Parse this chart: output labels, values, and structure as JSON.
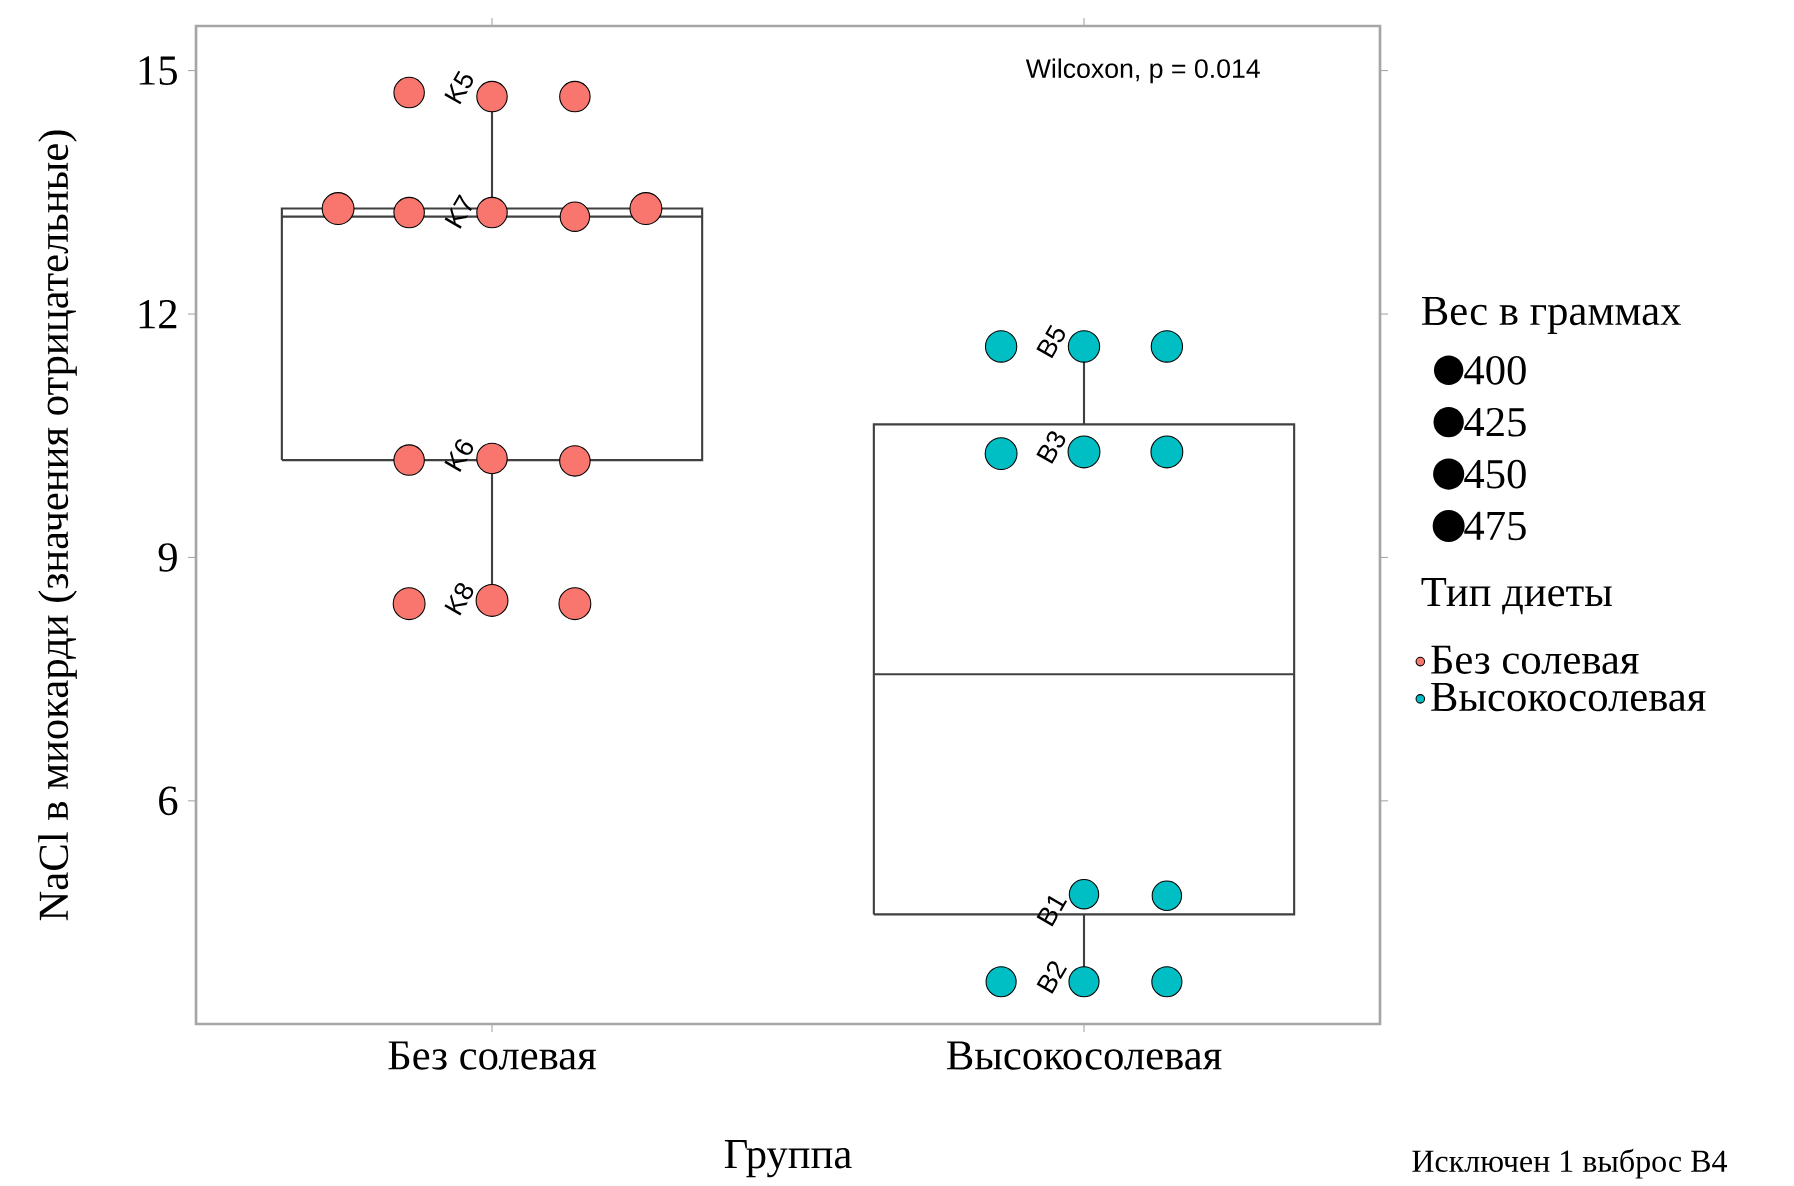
{
  "chart_data": {
    "type": "box",
    "xlabel": "Группа",
    "ylabel": "NaCl в миокарди (значения отрицательные)",
    "legend_title": "Тип диеты",
    "categories": [
      "Без солевая",
      "Высокосолевая"
    ],
    "boxes": [
      {
        "low": 8.43,
        "q1": 10.2,
        "median": 13.2,
        "q3": 13.3,
        "high": 14.73
      },
      {
        "low": 3.77,
        "q1": 4.6,
        "median": 7.56,
        "q3": 10.64,
        "high": 11.6
      }
    ],
    "series": [
      {
        "name": "Без солевая",
        "type": "bubble",
        "color": "#f8766d",
        "x": [
          "Без солевая",
          "Без солевая",
          "Без солевая",
          "Без солевая",
          "Без солевая",
          "Без солевая",
          "Без солевая",
          "Без солевая",
          "Без солевая",
          "Без солевая",
          "Без солевая",
          "Без солевая",
          "Без солевая",
          "Без солевая"
        ],
        "values": [
          14.68,
          14.68,
          14.73,
          13.25,
          13.2,
          13.25,
          13.3,
          13.3,
          10.22,
          10.19,
          10.2,
          8.47,
          8.43,
          8.43
        ],
        "sizes": [
          430,
          430,
          430,
          430,
          400,
          430,
          470,
          470,
          430,
          430,
          430,
          470,
          470,
          470
        ]
      },
      {
        "name": "Высокосолевая",
        "type": "bubble",
        "color": "#00bfc4",
        "x": [
          "Высокосолевая",
          "Высокосолевая",
          "Высокосолевая",
          "Высокосолевая",
          "Высокосолевая",
          "Высокосолевая",
          "Высокосолевая",
          "Высокосолевая",
          "Высокосолевая",
          "Высокосолевая",
          "Высокосолевая"
        ],
        "values": [
          11.6,
          11.6,
          11.6,
          10.3,
          10.3,
          10.28,
          4.85,
          4.83,
          3.77,
          3.77,
          3.77
        ],
        "sizes": [
          455,
          455,
          455,
          470,
          470,
          470,
          400,
          400,
          420,
          420,
          420
        ]
      }
    ],
    "size_legend": [
      {
        "value": 400,
        "label": "400"
      },
      {
        "value": 425,
        "label": "425"
      },
      {
        "value": 450,
        "label": "450"
      },
      {
        "value": 475,
        "label": "475"
      }
    ],
    "ylim": [
      3.25,
      15.55
    ],
    "yticks": [
      6,
      9,
      12,
      15
    ],
    "legend": "right",
    "annotations": [
      "Wilcoxon, p = 0.014",
      "Исключен 1 выброс B4",
      "Вес в граммах",
      {
        "text": "K5",
        "x": "Без солевая",
        "y": 14.73
      },
      {
        "text": "K7",
        "x": "Без солевая",
        "y": 13.2
      },
      {
        "text": "K6",
        "x": "Без солевая",
        "y": 10.2
      },
      {
        "text": "K8",
        "x": "Без солевая",
        "y": 8.43
      },
      {
        "text": "B5",
        "x": "Высокосолевая",
        "y": 11.6
      },
      {
        "text": "B3",
        "x": "Высокосолевая",
        "y": 10.3
      },
      {
        "text": "B1",
        "x": "Высокосолевая",
        "y": 4.6
      },
      {
        "text": "B2",
        "x": "Высокосолевая",
        "y": 3.77
      }
    ]
  }
}
